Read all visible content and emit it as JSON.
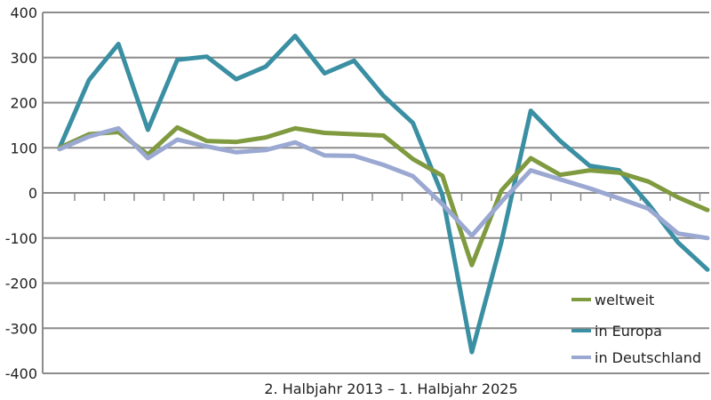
{
  "chart_data": {
    "type": "line",
    "xlabel": "2. Halbjahr 2013 – 1. Halbjahr 2025",
    "ylabel": "",
    "ylim": [
      -400,
      400
    ],
    "yticks": [
      400,
      300,
      200,
      100,
      0,
      -100,
      -200,
      -300,
      -400
    ],
    "ytick_labels": [
      "400",
      "300",
      "200",
      "100",
      "0",
      "-100",
      "-200",
      "-300",
      "-400"
    ],
    "grid": true,
    "legend_position": "bottom-right",
    "series": [
      {
        "name": "weltweit",
        "color": "#7f9a3f",
        "values": [
          100,
          130,
          135,
          85,
          145,
          115,
          113,
          123,
          143,
          133,
          130,
          127,
          75,
          38,
          -160,
          5,
          77,
          40,
          50,
          45,
          25,
          -10,
          -38
        ]
      },
      {
        "name": "in Europa",
        "color": "#3a8fa3",
        "values": [
          100,
          250,
          330,
          140,
          295,
          302,
          252,
          280,
          348,
          265,
          293,
          215,
          155,
          -5,
          -353,
          -110,
          182,
          115,
          60,
          50,
          -25,
          -110,
          -170
        ]
      },
      {
        "name": "in Deutschland",
        "color": "#9aa8d2",
        "values": [
          97,
          125,
          143,
          77,
          118,
          103,
          90,
          95,
          112,
          83,
          82,
          62,
          37,
          -25,
          -95,
          -20,
          50,
          30,
          10,
          -12,
          -35,
          -90,
          -100
        ]
      }
    ]
  }
}
